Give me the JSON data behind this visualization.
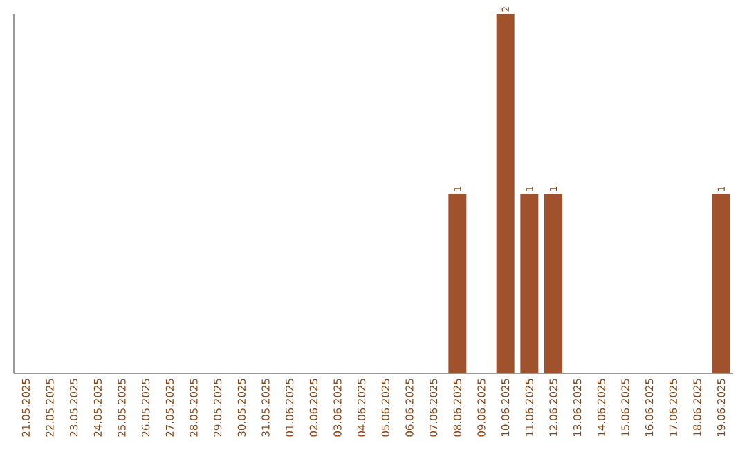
{
  "chart_data": {
    "type": "bar",
    "categories": [
      "21.05.2025",
      "22.05.2025",
      "23.05.2025",
      "24.05.2025",
      "25.05.2025",
      "26.05.2025",
      "27.05.2025",
      "28.05.2025",
      "29.05.2025",
      "30.05.2025",
      "31.05.2025",
      "01.06.2025",
      "02.06.2025",
      "03.06.2025",
      "04.06.2025",
      "05.06.2025",
      "06.06.2025",
      "07.06.2025",
      "08.06.2025",
      "09.06.2025",
      "10.06.2025",
      "11.06.2025",
      "12.06.2025",
      "13.06.2025",
      "14.06.2025",
      "15.06.2025",
      "16.06.2025",
      "17.06.2025",
      "18.06.2025",
      "19.06.2025"
    ],
    "values": [
      null,
      null,
      null,
      null,
      null,
      null,
      null,
      null,
      null,
      null,
      null,
      null,
      null,
      null,
      null,
      null,
      null,
      null,
      1,
      null,
      2,
      1,
      1,
      null,
      null,
      null,
      null,
      null,
      null,
      1
    ],
    "value_labels": [
      null,
      null,
      null,
      null,
      null,
      null,
      null,
      null,
      null,
      null,
      null,
      null,
      null,
      null,
      null,
      null,
      null,
      null,
      "1",
      null,
      "2",
      "1",
      "1",
      null,
      null,
      null,
      null,
      null,
      null,
      "1"
    ],
    "color": "#a0522d"
  }
}
